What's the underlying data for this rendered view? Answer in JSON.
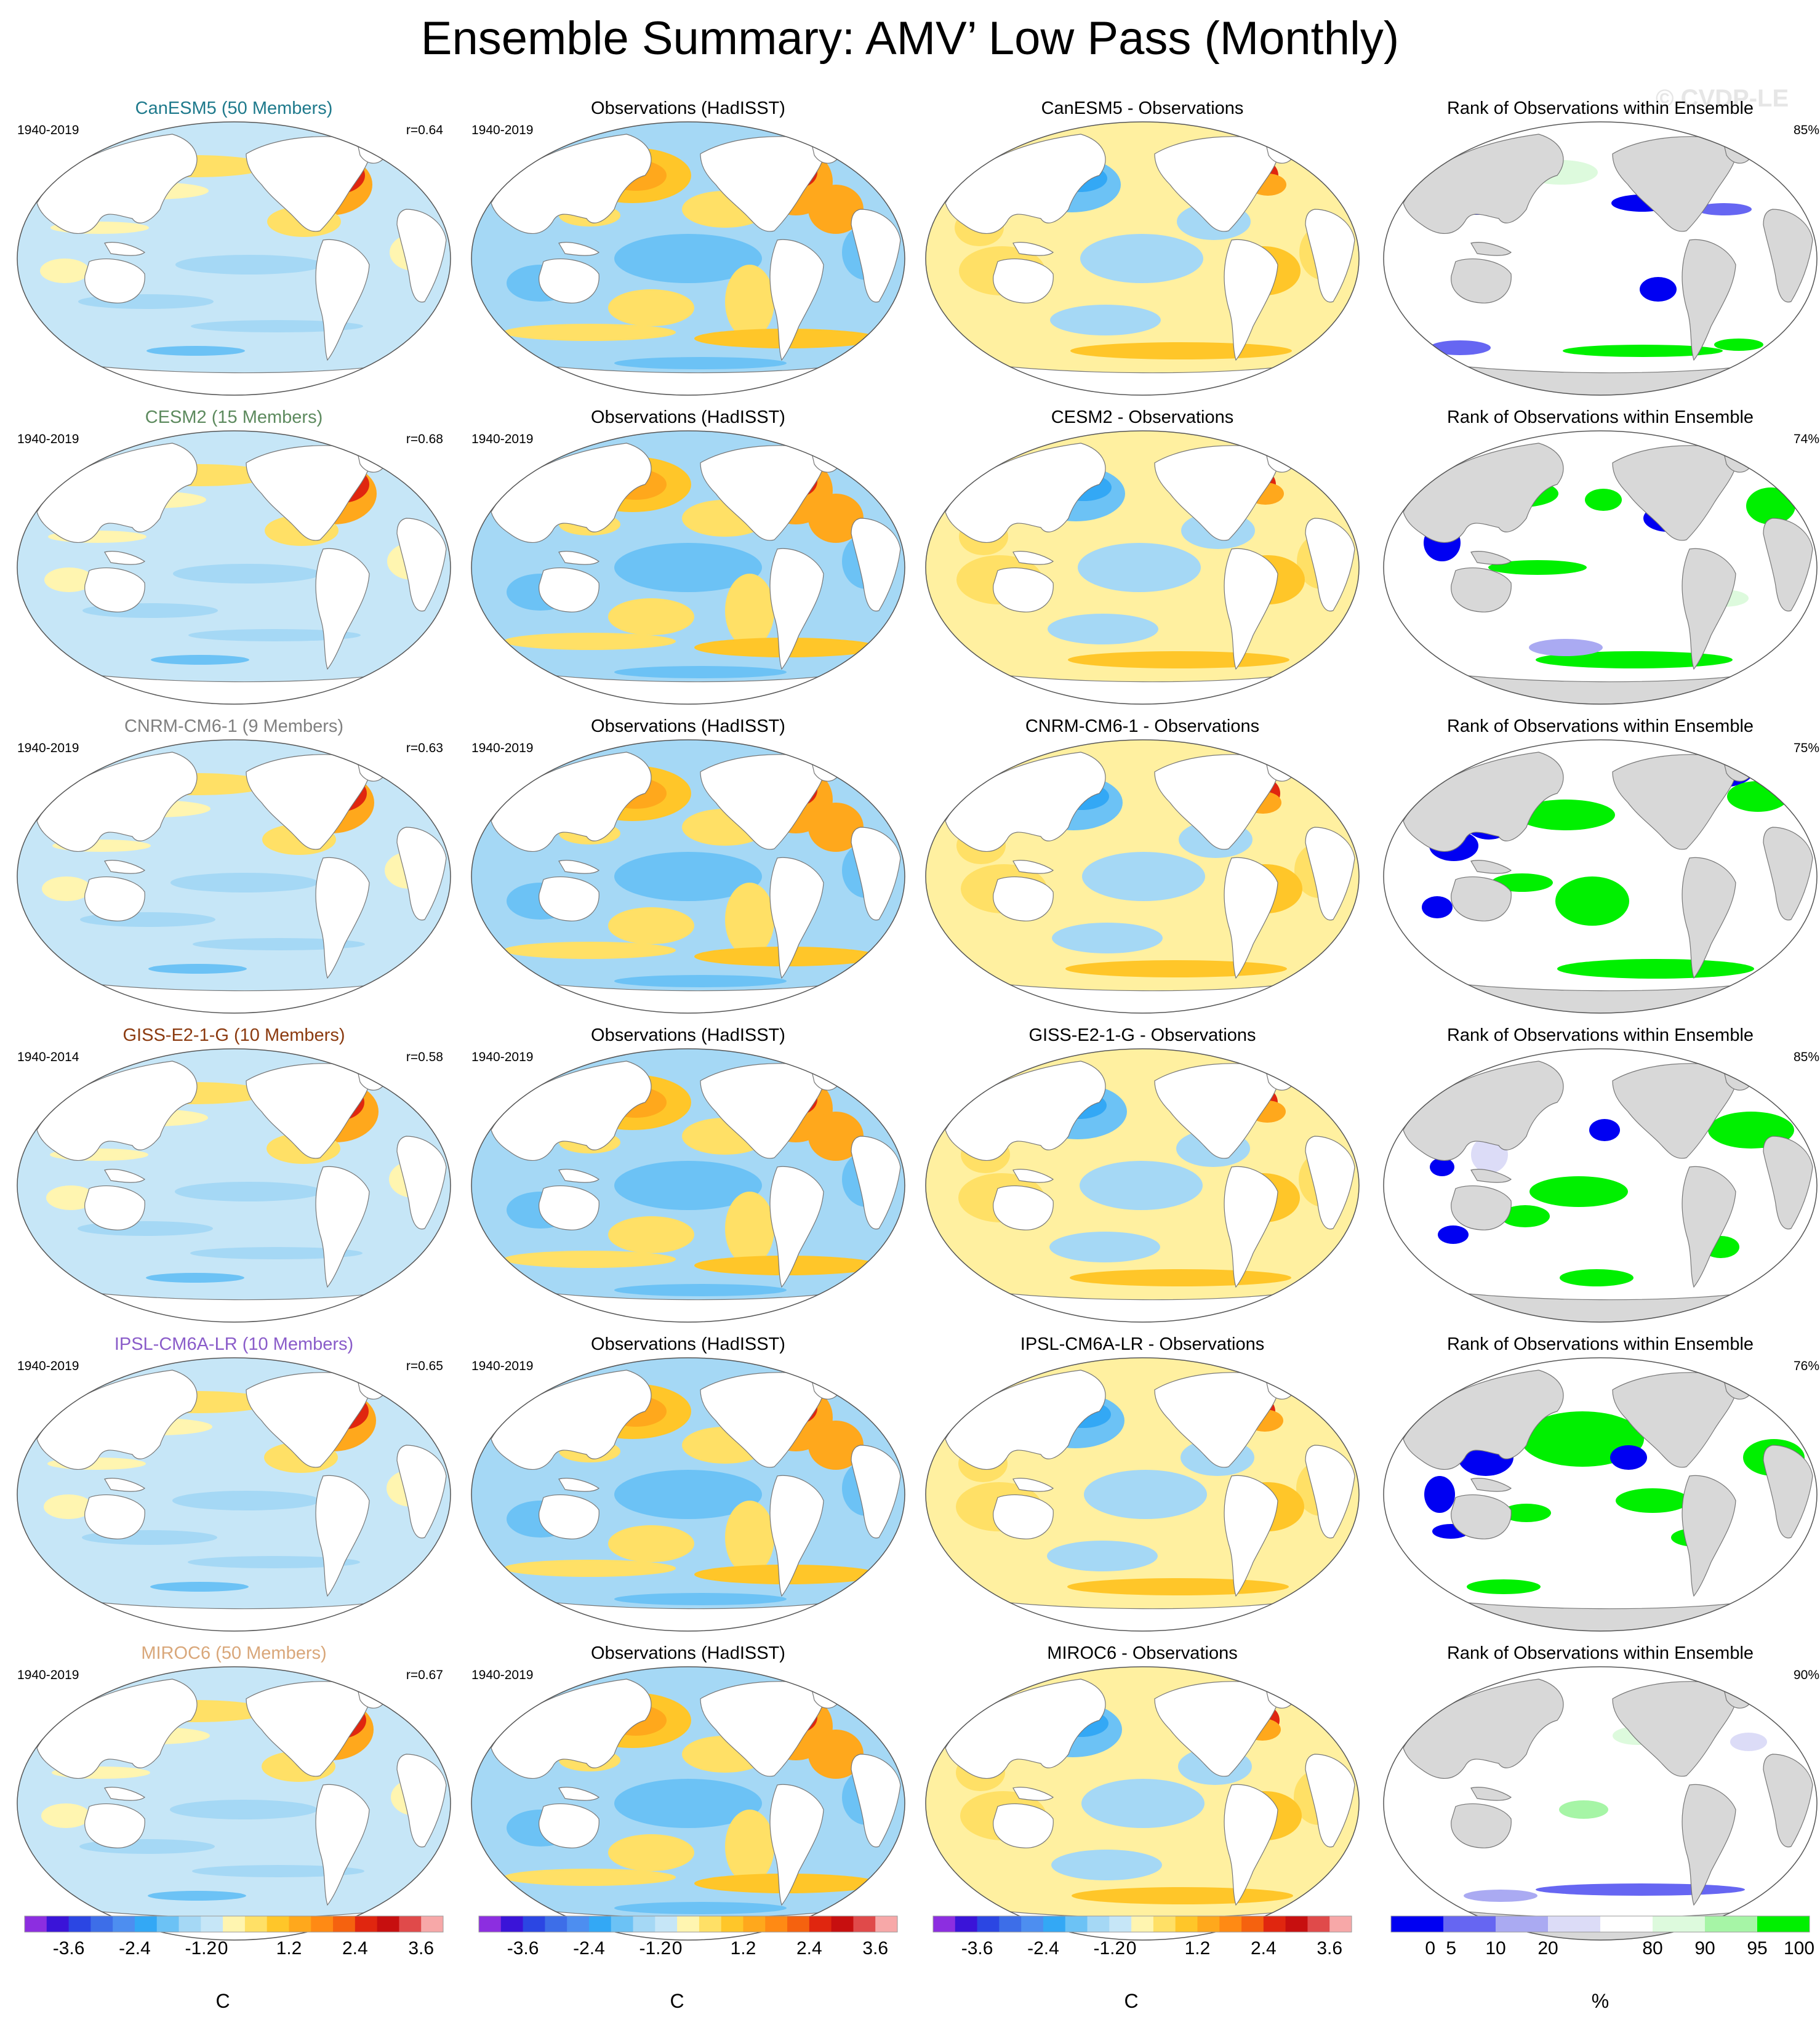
{
  "page_title": "Ensemble Summary: AMV’ Low Pass (Monthly)",
  "watermark": "© CVDP-LE",
  "rows": [
    {
      "model_title": "CanESM5 (50 Members)",
      "model_color": "#1f7a8c",
      "model_period": "1940-2019",
      "r": "r=0.64",
      "obs_title": "Observations (HadISST)",
      "obs_period": "1940-2019",
      "diff_title": "CanESM5 - Observations",
      "rank_title": "Rank of Observations within Ensemble",
      "rank_pct": "85%"
    },
    {
      "model_title": "CESM2 (15 Members)",
      "model_color": "#5d8a5e",
      "model_period": "1940-2019",
      "r": "r=0.68",
      "obs_title": "Observations (HadISST)",
      "obs_period": "1940-2019",
      "diff_title": "CESM2 - Observations",
      "rank_title": "Rank of Observations within Ensemble",
      "rank_pct": "74%"
    },
    {
      "model_title": "CNRM-CM6-1 (9 Members)",
      "model_color": "#808080",
      "model_period": "1940-2019",
      "r": "r=0.63",
      "obs_title": "Observations (HadISST)",
      "obs_period": "1940-2019",
      "diff_title": "CNRM-CM6-1 - Observations",
      "rank_title": "Rank of Observations within Ensemble",
      "rank_pct": "75%"
    },
    {
      "model_title": "GISS-E2-1-G (10 Members)",
      "model_color": "#8b3a0f",
      "model_period": "1940-2014",
      "r": "r=0.58",
      "obs_title": "Observations (HadISST)",
      "obs_period": "1940-2019",
      "diff_title": "GISS-E2-1-G - Observations",
      "rank_title": "Rank of Observations within Ensemble",
      "rank_pct": "85%"
    },
    {
      "model_title": "IPSL-CM6A-LR (10 Members)",
      "model_color": "#8a5cc9",
      "model_period": "1940-2019",
      "r": "r=0.65",
      "obs_title": "Observations (HadISST)",
      "obs_period": "1940-2019",
      "diff_title": "IPSL-CM6A-LR - Observations",
      "rank_title": "Rank of Observations within Ensemble",
      "rank_pct": "76%"
    },
    {
      "model_title": "MIROC6 (50 Members)",
      "model_color": "#d9a77a",
      "model_period": "1940-2019",
      "r": "r=0.67",
      "obs_title": "Observations (HadISST)",
      "obs_period": "1940-2019",
      "diff_title": "MIROC6 - Observations",
      "rank_title": "Rank of Observations within Ensemble",
      "rank_pct": "90%"
    }
  ],
  "colorbar_sst": {
    "unit": "C",
    "colors": [
      "#8c2ee0",
      "#3a14d8",
      "#2b46e3",
      "#3d6ee8",
      "#4d8ef0",
      "#33a8f5",
      "#6cc2f5",
      "#a5d8f5",
      "#c6e6f7",
      "#fff5b0",
      "#ffe066",
      "#ffc629",
      "#ffa81c",
      "#ff8a14",
      "#f5620f",
      "#e0260f",
      "#c70f0f",
      "#e04a4a",
      "#f7a8a8"
    ],
    "tick_labels": [
      "-3.6",
      "-2.4",
      "-1.2",
      "0",
      "1.2",
      "2.4",
      "3.6"
    ],
    "tick_boundaries": [
      2,
      5,
      8,
      9,
      12,
      15,
      18
    ]
  },
  "colorbar_rank": {
    "unit": "%",
    "colors": [
      "#0000f2",
      "#6666f2",
      "#aaaaf2",
      "#dcdcf7",
      "#ffffff",
      "#ddfadd",
      "#a6f5a6",
      "#00f000"
    ],
    "tick_labels": [
      "0",
      "5",
      "10",
      "20",
      "80",
      "90",
      "95",
      "100"
    ],
    "tick_boundaries": [
      0.75,
      1.15,
      2,
      3,
      5,
      6,
      7,
      7.8
    ]
  },
  "map_theme": {
    "sst_land": "#ffffff",
    "rank_land": "#d8d8d8",
    "ocean_base_model": "#c6e6f7",
    "ocean_base_obs": "#a5d8f5",
    "ocean_base_diff": "#fff0a0",
    "ocean_base_rank": "#ffffff"
  }
}
